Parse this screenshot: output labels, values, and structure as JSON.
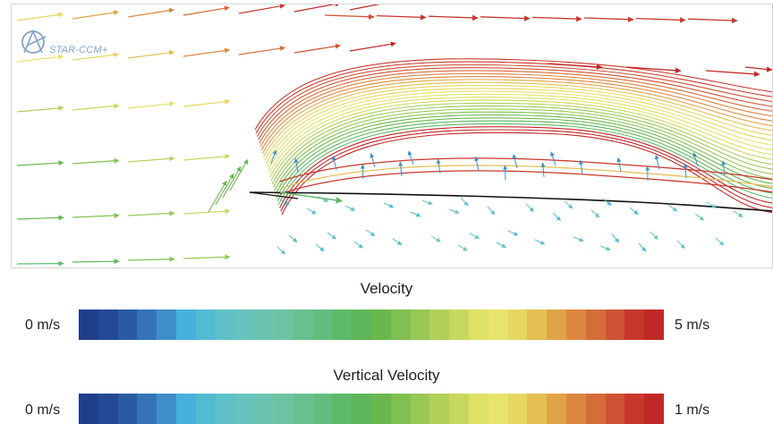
{
  "logo": {
    "text": "STAR-CCM+"
  },
  "legends": [
    {
      "title": "Velocity",
      "min_label": "0 m/s",
      "max_label": "5 m/s",
      "colors": [
        "#1f3f8a",
        "#224a96",
        "#2a5aa3",
        "#3574b8",
        "#3f8ec9",
        "#46b1dc",
        "#52bbd2",
        "#5ec0c8",
        "#66c3bd",
        "#6cc4b0",
        "#6cc3a1",
        "#69c08f",
        "#64bd7e",
        "#5eb96a",
        "#5cb659",
        "#6ab74e",
        "#80c050",
        "#98c855",
        "#b0d05a",
        "#c8d85e",
        "#dfe165",
        "#e8e36d",
        "#e6d75f",
        "#e4bf52",
        "#e1a347",
        "#dc8740",
        "#d56d3b",
        "#cf5334",
        "#c8372c",
        "#c22727"
      ]
    },
    {
      "title": "Vertical Velocity",
      "min_label": "0 m/s",
      "max_label": "1 m/s",
      "colors": [
        "#1f3f8a",
        "#224a96",
        "#2a5aa3",
        "#3574b8",
        "#3f8ec9",
        "#46b1dc",
        "#52bbd2",
        "#5ec0c8",
        "#66c3bd",
        "#6cc4b0",
        "#6cc3a1",
        "#69c08f",
        "#64bd7e",
        "#5eb96a",
        "#5cb659",
        "#6ab74e",
        "#80c050",
        "#98c855",
        "#b0d05a",
        "#c8d85e",
        "#dfe165",
        "#e8e36d",
        "#e6d75f",
        "#e4bf52",
        "#e1a347",
        "#dc8740",
        "#d56d3b",
        "#cf5334",
        "#c8372c",
        "#c22727"
      ]
    }
  ]
}
